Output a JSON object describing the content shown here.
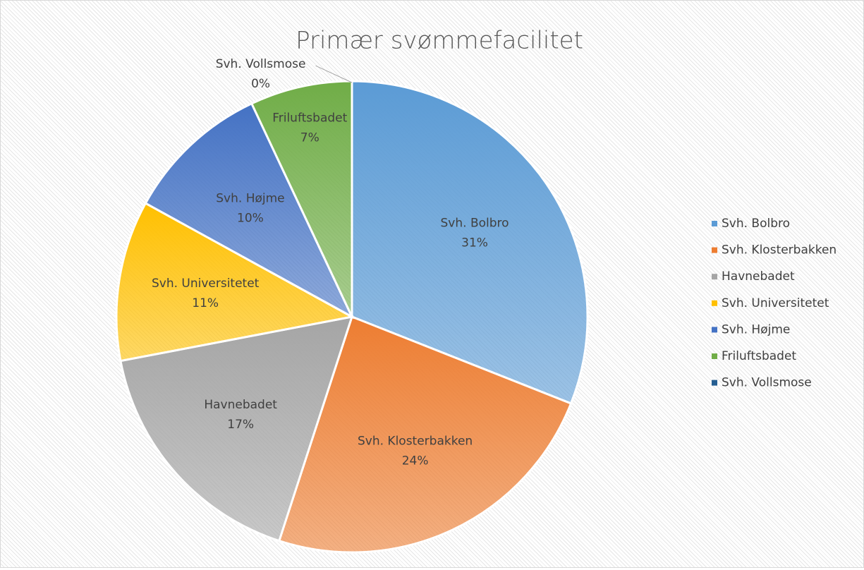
{
  "chart_data": {
    "type": "pie",
    "title": "Primær svømmefacilitet",
    "categories": [
      "Svh. Bolbro",
      "Svh. Klosterbakken",
      "Havnebadet",
      "Svh. Universitetet",
      "Svh. Højme",
      "Friluftsbadet",
      "Svh. Vollsmose"
    ],
    "values": [
      31,
      24,
      17,
      11,
      10,
      7,
      0
    ],
    "value_labels": [
      "31%",
      "24%",
      "17%",
      "11%",
      "10%",
      "7%",
      "0%"
    ],
    "colors": [
      "#5b9bd5",
      "#ed7d31",
      "#a5a5a5",
      "#ffc000",
      "#4472c4",
      "#70ad47",
      "#255e91"
    ],
    "legend": "right"
  }
}
